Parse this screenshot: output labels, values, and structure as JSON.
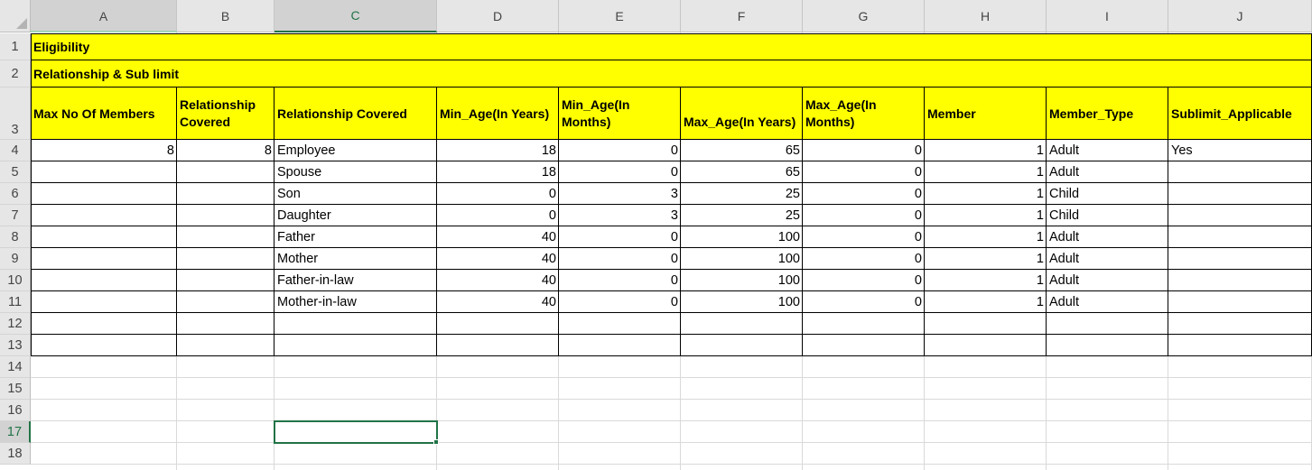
{
  "columns": [
    "A",
    "B",
    "C",
    "D",
    "E",
    "F",
    "G",
    "H",
    "I",
    "J"
  ],
  "selected_column": "C",
  "selected_row": 17,
  "row_numbers": [
    1,
    2,
    3,
    4,
    5,
    6,
    7,
    8,
    9,
    10,
    11,
    12,
    13,
    14,
    15,
    16,
    17,
    18
  ],
  "colors": {
    "highlight_fill": "#ffff00",
    "selection": "#217346",
    "header_bg": "#e6e6e6"
  },
  "title_row": "Eligibility",
  "subtitle_row": "Relationship & Sub limit",
  "headers": [
    "Max No Of Members",
    "Relationship Covered",
    "Relationship Covered",
    "Min_Age(In Years)",
    "Min_Age(In Months)",
    "Max_Age(In Years)",
    "Max_Age(In Months)",
    "Member",
    "Member_Type",
    "Sublimit_Applicable"
  ],
  "rows": [
    [
      "8",
      "8",
      "Employee",
      "18",
      "0",
      "65",
      "0",
      "1",
      "Adult",
      "Yes"
    ],
    [
      "",
      "",
      "Spouse",
      "18",
      "0",
      "65",
      "0",
      "1",
      "Adult",
      ""
    ],
    [
      "",
      "",
      "Son",
      "0",
      "3",
      "25",
      "0",
      "1",
      "Child",
      ""
    ],
    [
      "",
      "",
      "Daughter",
      "0",
      "3",
      "25",
      "0",
      "1",
      "Child",
      ""
    ],
    [
      "",
      "",
      "Father",
      "40",
      "0",
      "100",
      "0",
      "1",
      "Adult",
      ""
    ],
    [
      "",
      "",
      "Mother",
      "40",
      "0",
      "100",
      "0",
      "1",
      "Adult",
      ""
    ],
    [
      "",
      "",
      "Father-in-law",
      "40",
      "0",
      "100",
      "0",
      "1",
      "Adult",
      ""
    ],
    [
      "",
      "",
      "Mother-in-law",
      "40",
      "0",
      "100",
      "0",
      "1",
      "Adult",
      ""
    ]
  ]
}
